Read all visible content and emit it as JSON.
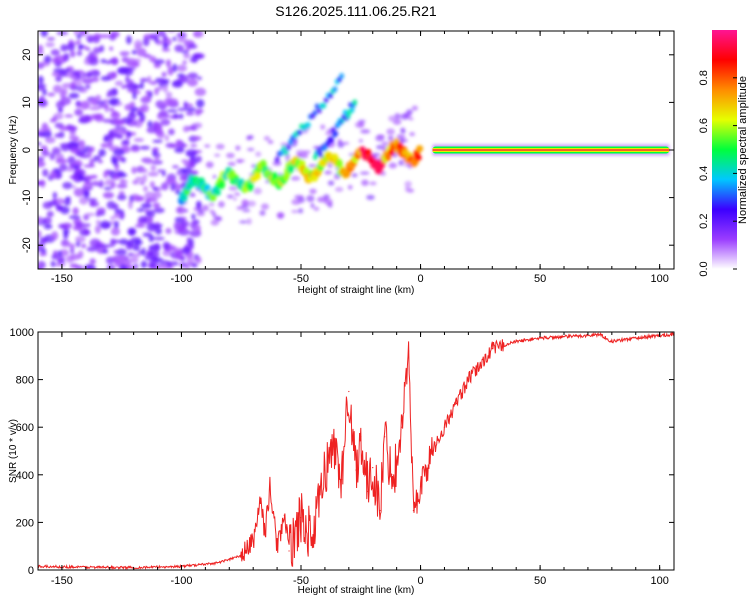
{
  "title": "S126.2025.111.06.25.R21",
  "chart_data": [
    {
      "type": "heatmap",
      "name": "spectrogram",
      "xlabel": "Height of straight line (km)",
      "ylabel": "Frequency (Hz)",
      "xlim": [
        -160,
        106
      ],
      "ylim": [
        -25,
        25
      ],
      "xticks": [
        -150,
        -100,
        -50,
        0,
        50,
        100
      ],
      "yticks": [
        -20,
        -10,
        0,
        10,
        20
      ],
      "colorbar": {
        "label": "Normalized spectral amplitude",
        "range": [
          0,
          1
        ],
        "ticks": [
          0.0,
          0.2,
          0.4,
          0.6,
          0.8
        ],
        "colors": [
          "#ffffff",
          "#9a3cff",
          "#3b00ff",
          "#00c8ff",
          "#00ff3c",
          "#e6ff00",
          "#ff8c00",
          "#ff0000",
          "#ff1493"
        ]
      },
      "features": {
        "noise_region_x": [
          -160,
          -100
        ],
        "ridge_x": [
          -100,
          0,
          5,
          104
        ],
        "ridge_freq_hz": [
          -8.5,
          0,
          0,
          0
        ],
        "branch_x": [
          -60,
          -30
        ],
        "branch_freq_hz": [
          -2,
          15
        ]
      }
    },
    {
      "type": "line",
      "name": "snr",
      "xlabel": "Height of straight line (km)",
      "ylabel": "SNR (10 * v/v)",
      "xlim": [
        -160,
        106
      ],
      "ylim": [
        0,
        1000
      ],
      "xticks": [
        -150,
        -100,
        -50,
        0,
        50,
        100
      ],
      "yticks": [
        0,
        200,
        400,
        600,
        800,
        1000
      ],
      "color": "#ee2222",
      "series": [
        {
          "name": "SNR",
          "x": [
            -160,
            -140,
            -120,
            -100,
            -85,
            -75,
            -70,
            -67,
            -65,
            -63,
            -60,
            -57,
            -55,
            -50,
            -45,
            -40,
            -36,
            -33,
            -30,
            -27,
            -25,
            -22,
            -20,
            -17,
            -15,
            -12,
            -10,
            -8,
            -5,
            -3,
            0,
            5,
            10,
            15,
            20,
            25,
            30,
            40,
            50,
            60,
            70,
            75,
            80,
            90,
            100,
            105
          ],
          "y": [
            15,
            12,
            10,
            15,
            30,
            60,
            120,
            300,
            150,
            350,
            100,
            230,
            80,
            220,
            130,
            420,
            520,
            380,
            750,
            420,
            560,
            330,
            430,
            250,
            560,
            400,
            450,
            600,
            920,
            250,
            350,
            500,
            600,
            700,
            800,
            860,
            930,
            960,
            975,
            980,
            985,
            990,
            960,
            975,
            985,
            990
          ]
        }
      ]
    }
  ]
}
